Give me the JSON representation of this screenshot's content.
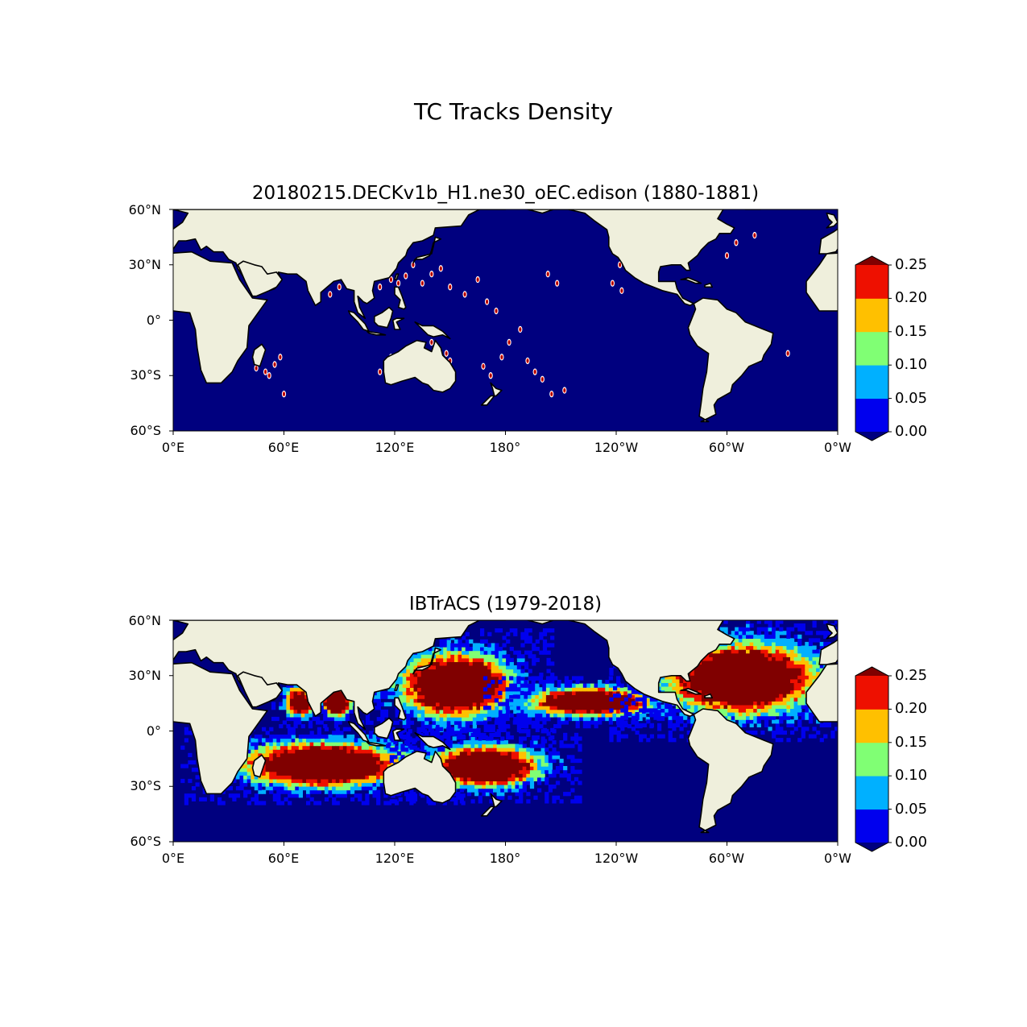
{
  "figure": {
    "title": "TC Tracks Density"
  },
  "panels": [
    {
      "title": "20180215.DECKv1b_H1.ne30_oEC.edison (1880-1881)"
    },
    {
      "title": "IBTrACS (1979-2018)"
    }
  ],
  "axes": {
    "y_ticks": [
      "60°N",
      "30°N",
      "0°",
      "30°S",
      "60°S"
    ],
    "x_ticks": [
      "0°E",
      "60°E",
      "120°E",
      "180°",
      "120°W",
      "60°W",
      "0°W"
    ],
    "lat_range": [
      -60,
      60
    ],
    "lon_range": [
      0,
      360
    ]
  },
  "colorbar": {
    "ticks": [
      "0.00",
      "0.05",
      "0.10",
      "0.15",
      "0.20",
      "0.25"
    ],
    "levels": [
      0,
      0.05,
      0.1,
      0.15,
      0.2,
      0.25
    ],
    "colors": [
      "#0000ee",
      "#00b0ff",
      "#80ff74",
      "#ffc000",
      "#ee1000"
    ],
    "under_color": "#00007f",
    "over_color": "#800000",
    "extend": "both"
  },
  "colors": {
    "ocean": "#00007f",
    "land": "#efefdc",
    "coast": "#000000"
  },
  "chart_data": [
    {
      "type": "heatmap",
      "title": "20180215.DECKv1b_H1.ne30_oEC.edison (1880-1881)",
      "variable": "TC track density",
      "description_levels": "sparse isolated track points, mostly 0.20-0.25+",
      "track_points": [
        [
          45,
          -26
        ],
        [
          50,
          -28
        ],
        [
          55,
          -24
        ],
        [
          58,
          -20
        ],
        [
          52,
          -30
        ],
        [
          60,
          -40
        ],
        [
          85,
          14
        ],
        [
          90,
          18
        ],
        [
          112,
          18
        ],
        [
          118,
          22
        ],
        [
          122,
          20
        ],
        [
          126,
          24
        ],
        [
          130,
          30
        ],
        [
          135,
          20
        ],
        [
          140,
          25
        ],
        [
          145,
          28
        ],
        [
          150,
          18
        ],
        [
          158,
          14
        ],
        [
          165,
          22
        ],
        [
          170,
          10
        ],
        [
          175,
          5
        ],
        [
          112,
          -28
        ],
        [
          118,
          -20
        ],
        [
          125,
          -18
        ],
        [
          140,
          -12
        ],
        [
          148,
          -18
        ],
        [
          150,
          -22
        ],
        [
          168,
          -25
        ],
        [
          172,
          -30
        ],
        [
          178,
          -20
        ],
        [
          182,
          -12
        ],
        [
          188,
          -5
        ],
        [
          192,
          -22
        ],
        [
          196,
          -28
        ],
        [
          200,
          -32
        ],
        [
          205,
          -40
        ],
        [
          212,
          -38
        ],
        [
          203,
          25
        ],
        [
          208,
          20
        ],
        [
          238,
          20
        ],
        [
          242,
          30
        ],
        [
          243,
          16
        ],
        [
          300,
          35
        ],
        [
          305,
          42
        ],
        [
          315,
          46
        ],
        [
          333,
          -18
        ]
      ]
    },
    {
      "type": "heatmap",
      "title": "IBTrACS (1979-2018)",
      "variable": "TC track density",
      "regions": [
        {
          "name": "Western North Pacific",
          "lon": [
            125,
            180
          ],
          "lat": [
            8,
            40
          ],
          "peak": 0.25
        },
        {
          "name": "Eastern North Pacific",
          "lon": [
            195,
            255
          ],
          "lat": [
            8,
            22
          ],
          "peak": 0.25
        },
        {
          "name": "North Atlantic",
          "lon": [
            270,
            345
          ],
          "lat": [
            10,
            45
          ],
          "peak": 0.25
        },
        {
          "name": "Bay of Bengal",
          "lon": [
            80,
            95
          ],
          "lat": [
            8,
            22
          ],
          "peak": 0.25
        },
        {
          "name": "Arabian Sea",
          "lon": [
            60,
            75
          ],
          "lat": [
            8,
            22
          ],
          "peak": 0.22
        },
        {
          "name": "South Indian Ocean",
          "lon": [
            40,
            120
          ],
          "lat": [
            -30,
            -8
          ],
          "peak": 0.25
        },
        {
          "name": "South Pacific",
          "lon": [
            140,
            195
          ],
          "lat": [
            -30,
            -10
          ],
          "peak": 0.25
        }
      ]
    }
  ]
}
